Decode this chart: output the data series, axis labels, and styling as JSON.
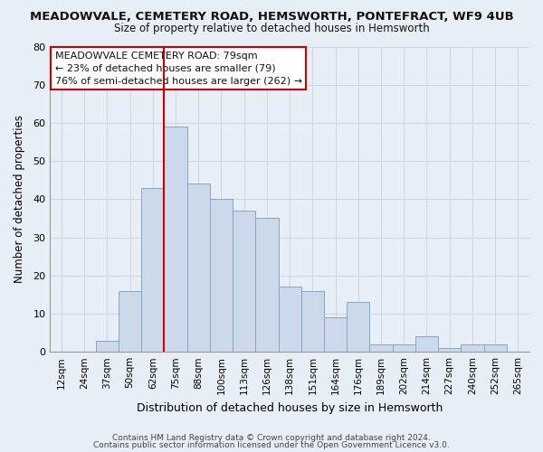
{
  "title": "MEADOWVALE, CEMETERY ROAD, HEMSWORTH, PONTEFRACT, WF9 4UB",
  "subtitle": "Size of property relative to detached houses in Hemsworth",
  "xlabel": "Distribution of detached houses by size in Hemsworth",
  "ylabel": "Number of detached properties",
  "bar_labels": [
    "12sqm",
    "24sqm",
    "37sqm",
    "50sqm",
    "62sqm",
    "75sqm",
    "88sqm",
    "100sqm",
    "113sqm",
    "126sqm",
    "138sqm",
    "151sqm",
    "164sqm",
    "176sqm",
    "189sqm",
    "202sqm",
    "214sqm",
    "227sqm",
    "240sqm",
    "252sqm",
    "265sqm"
  ],
  "bar_values": [
    0,
    0,
    3,
    16,
    43,
    59,
    44,
    40,
    37,
    35,
    17,
    16,
    9,
    13,
    2,
    2,
    4,
    1,
    2,
    2,
    0
  ],
  "bar_color": "#ccd9ea",
  "bar_edge_color": "#7fa8c9",
  "vline_index": 5,
  "vline_color": "#cc0000",
  "ylim": [
    0,
    80
  ],
  "yticks": [
    0,
    10,
    20,
    30,
    40,
    50,
    60,
    70,
    80
  ],
  "annotation_title": "MEADOWVALE CEMETERY ROAD: 79sqm",
  "annotation_line1": "← 23% of detached houses are smaller (79)",
  "annotation_line2": "76% of semi-detached houses are larger (262) →",
  "annotation_box_color": "#ffffff",
  "annotation_box_edge": "#cc0000",
  "footer_line1": "Contains HM Land Registry data © Crown copyright and database right 2024.",
  "footer_line2": "Contains public sector information licensed under the Open Government Licence v3.0.",
  "background_color": "#e8eef5",
  "grid_color": "#d0d8e4",
  "title_fontsize": 9.5,
  "subtitle_fontsize": 8.5
}
